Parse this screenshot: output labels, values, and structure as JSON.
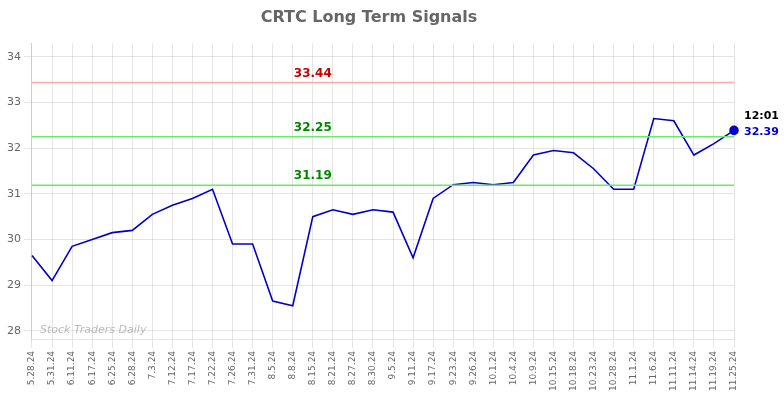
{
  "chart_data": {
    "type": "line",
    "title": "CRTC Long Term Signals",
    "categories": [
      "5.28.24",
      "5.31.24",
      "6.11.24",
      "6.17.24",
      "6.25.24",
      "6.28.24",
      "7.3.24",
      "7.12.24",
      "7.17.24",
      "7.22.24",
      "7.26.24",
      "7.31.24",
      "8.5.24",
      "8.8.24",
      "8.15.24",
      "8.21.24",
      "8.27.24",
      "8.30.24",
      "9.5.24",
      "9.11.24",
      "9.17.24",
      "9.23.24",
      "9.26.24",
      "10.1.24",
      "10.4.24",
      "10.9.24",
      "10.15.24",
      "10.18.24",
      "10.23.24",
      "10.28.24",
      "11.1.24",
      "11.6.24",
      "11.11.24",
      "11.14.24",
      "11.19.24",
      "11.25.24"
    ],
    "values": [
      29.65,
      29.1,
      29.85,
      30.0,
      30.15,
      30.2,
      30.55,
      30.75,
      30.9,
      31.1,
      29.9,
      29.9,
      28.65,
      28.55,
      30.5,
      30.65,
      30.55,
      30.65,
      30.6,
      29.6,
      30.9,
      31.2,
      31.25,
      31.2,
      31.25,
      31.85,
      31.95,
      31.9,
      31.55,
      31.1,
      31.1,
      32.65,
      32.6,
      31.85,
      32.1,
      32.39
    ],
    "color": "#0000cc",
    "ylim": [
      27.8,
      34.3
    ],
    "yticks": [
      28,
      29,
      30,
      31,
      32,
      33,
      34
    ],
    "grid": true,
    "hlines": [
      {
        "value": 33.44,
        "color": "#ffaaaa",
        "text_color": "#cc0000"
      },
      {
        "value": 32.25,
        "color": "#66ee66",
        "text_color": "#008800"
      },
      {
        "value": 31.19,
        "color": "#66ee66",
        "text_color": "#008800"
      }
    ],
    "last_label": {
      "time": "12:01",
      "value": 32.39
    },
    "watermark": "Stock Traders Daily"
  }
}
